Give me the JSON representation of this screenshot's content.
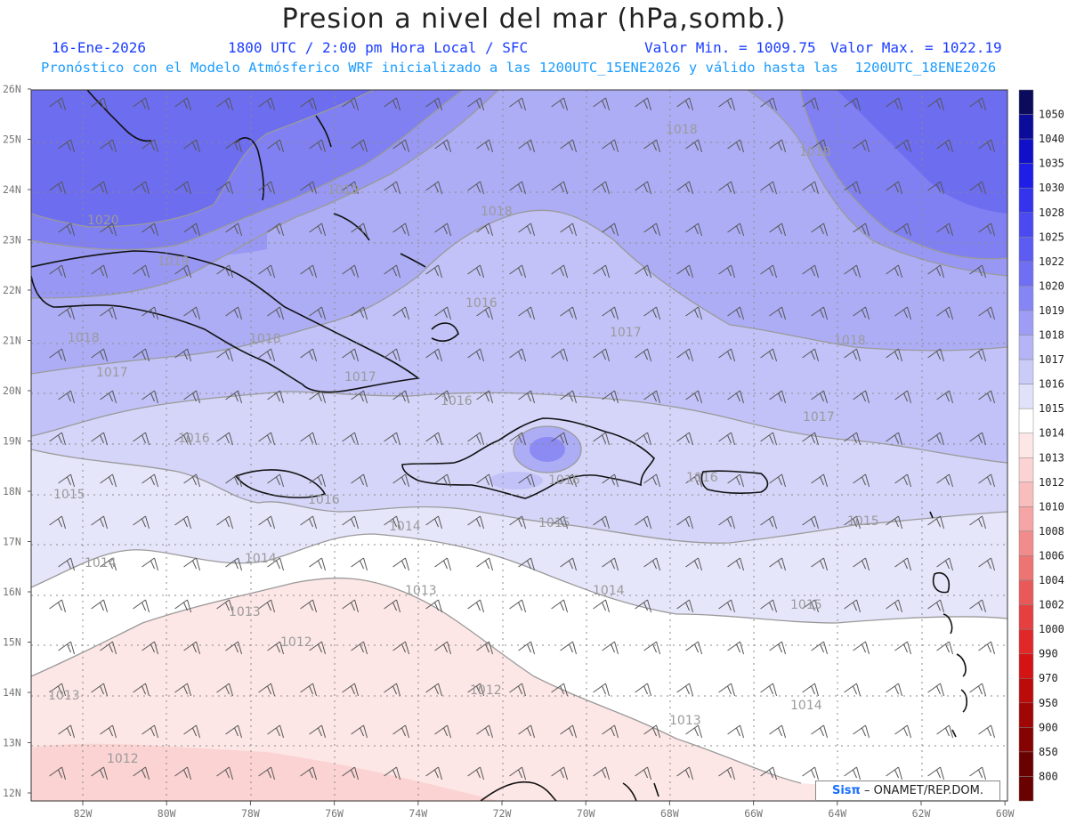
{
  "header": {
    "title": "Presion a nivel del mar (hPa,somb.)",
    "date": "16-Ene-2026",
    "time": "1800 UTC / 2:00 pm Hora Local / SFC",
    "min": "Valor Min. = 1009.75",
    "max": "Valor Max. = 1022.19",
    "model_line": "Pronóstico con el Modelo Atmósferico WRF inicializado a las 1200UTC_15ENE2026 y válido hasta las  1200UTC_18ENE2026"
  },
  "axes": {
    "lat_labels": [
      "26N",
      "25N",
      "24N",
      "23N",
      "22N",
      "21N",
      "20N",
      "19N",
      "18N",
      "17N",
      "16N",
      "15N",
      "14N",
      "13N",
      "12N"
    ],
    "lon_labels": [
      "82W",
      "80W",
      "78W",
      "76W",
      "74W",
      "72W",
      "70W",
      "68W",
      "66W",
      "64W",
      "62W",
      "60W"
    ]
  },
  "colorbar": {
    "levels": [
      "1050",
      "1040",
      "1035",
      "1030",
      "1028",
      "1025",
      "1022",
      "1020",
      "1019",
      "1018",
      "1017",
      "1016",
      "1015",
      "1014",
      "1013",
      "1012",
      "1010",
      "1008",
      "1006",
      "1004",
      "1002",
      "1000",
      "990",
      "970",
      "950",
      "900",
      "850",
      "800"
    ],
    "colors": [
      "#0b0b5c",
      "#0c0c9a",
      "#1010c8",
      "#1e1ee6",
      "#3434ec",
      "#4a4af0",
      "#5c5cf2",
      "#6f6ff4",
      "#8585f5",
      "#9d9df6",
      "#b4b4f7",
      "#cbcbf8",
      "#e1e1fa",
      "#ffffff",
      "#fde6e6",
      "#fbd3d3",
      "#f8bdbd",
      "#f5a5a5",
      "#f28c8c",
      "#ee7373",
      "#ea5959",
      "#e53f3f",
      "#e02828",
      "#d41414",
      "#bb0b0b",
      "#a00606",
      "#850303",
      "#6a0101"
    ]
  },
  "contour_labels": [
    "1020",
    "1019",
    "1018",
    "1018",
    "1018",
    "1019",
    "1018",
    "1017",
    "1016",
    "1017",
    "1018",
    "1017",
    "1016",
    "1016",
    "1018",
    "1017",
    "1016",
    "1015",
    "1015",
    "1016",
    "1015",
    "1014",
    "1014",
    "1014",
    "1013",
    "1013",
    "1014",
    "1013",
    "1012",
    "1012",
    "1015",
    "1013",
    "1014",
    "1012",
    "1016"
  ],
  "credit": {
    "brand": "Sisπ",
    "text": "– ONAMET/REP.DOM."
  }
}
